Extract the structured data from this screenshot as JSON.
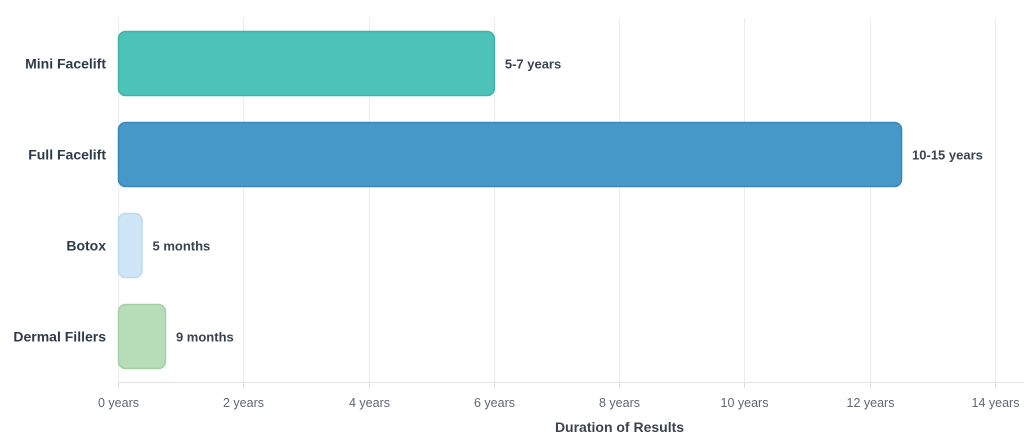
{
  "chart_data": {
    "type": "bar",
    "orientation": "horizontal",
    "title": "",
    "xlabel": "Duration of Results",
    "ylabel": "",
    "xlim": [
      0,
      14
    ],
    "x_tick_values": [
      0,
      2,
      4,
      6,
      8,
      10,
      12,
      14
    ],
    "x_tick_labels": [
      "0 years",
      "2 years",
      "4 years",
      "6 years",
      "8 years",
      "10 years",
      "12 years",
      "14 years"
    ],
    "grid": true,
    "categories": [
      "Mini Facelift",
      "Full Facelift",
      "Botox",
      "Dermal Fillers"
    ],
    "values": [
      6,
      12.5,
      0.375,
      0.75
    ],
    "value_labels": [
      "5-7 years",
      "10-15 years",
      "5 months",
      "9 months"
    ],
    "colors": [
      "#4dc2b9",
      "#4698c8",
      "#cfe5f8",
      "#b5ddb8"
    ],
    "border_colors": [
      "#3fb3aa",
      "#3a87b8",
      "#bcd8f2",
      "#a3d0a6"
    ]
  }
}
